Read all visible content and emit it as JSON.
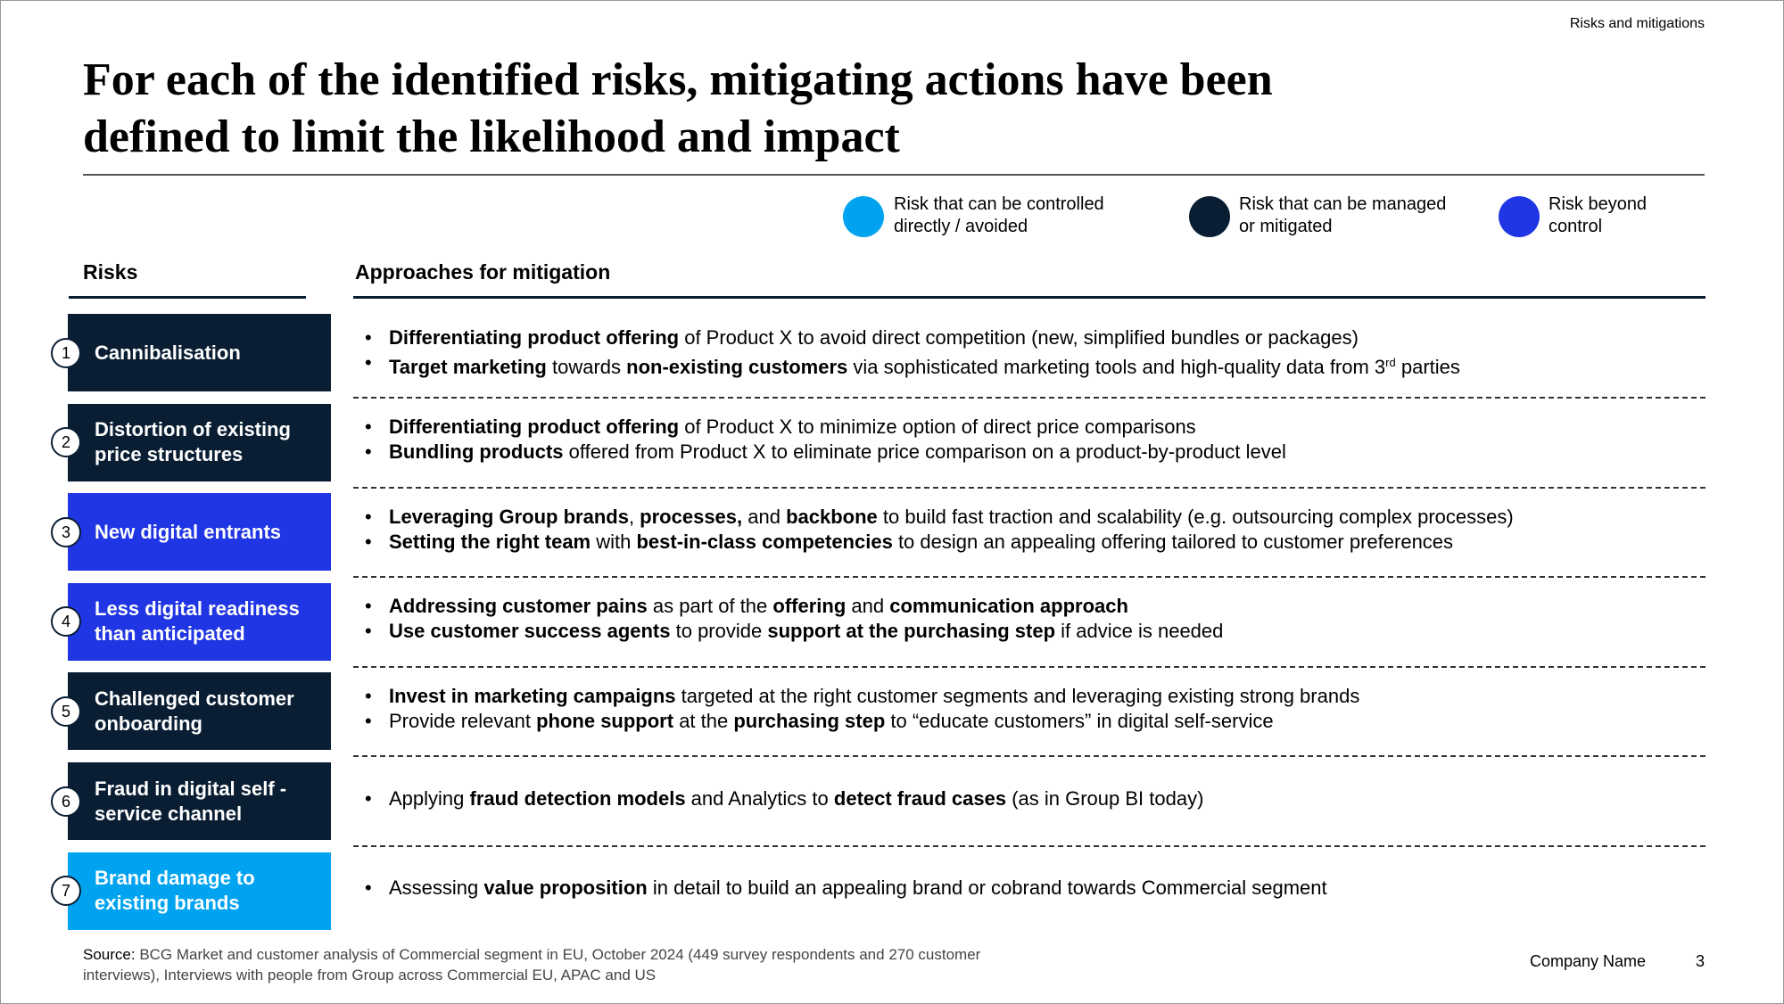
{
  "header": {
    "section": "Risks and mitigations",
    "title_lines": [
      "For each of the identified risks, mitigating actions have been",
      "defined to limit the likelihood and impact"
    ]
  },
  "legend": [
    {
      "color": "#00a3f0",
      "label_lines": [
        "Risk that can be controlled",
        "directly / avoided"
      ]
    },
    {
      "color": "#0a1e33",
      "label_lines": [
        "Risk that can be managed",
        "or mitigated"
      ]
    },
    {
      "color": "#2035e3",
      "label_lines": [
        "Risk beyond",
        "control"
      ]
    }
  ],
  "table": {
    "headers": [
      "Risks",
      "Approaches for mitigation"
    ],
    "rows": [
      {
        "number": "1",
        "color": "#0a1e33",
        "risk_lines": [
          "Cannibalisation"
        ],
        "bullets": [
          [
            {
              "text": "Differentiating product offering",
              "style": "bold"
            },
            {
              "text": " of Product X to avoid direct competition (new, simplified bundles or packages)"
            }
          ],
          [
            {
              "text": "Target marketing",
              "style": "bold"
            },
            {
              "text": " towards "
            },
            {
              "text": "non-existing customers",
              "style": "bold"
            },
            {
              "text": " via sophisticated marketing tools and high-quality data from 3"
            },
            {
              "text": "rd",
              "style": "sup"
            },
            {
              "text": " parties"
            }
          ]
        ]
      },
      {
        "number": "2",
        "color": "#0a1e33",
        "risk_lines": [
          "Distortion of existing",
          "price structures"
        ],
        "bullets": [
          [
            {
              "text": "Differentiating product offering",
              "style": "bold"
            },
            {
              "text": " of Product X to minimize option of direct price comparisons"
            }
          ],
          [
            {
              "text": "Bundling products",
              "style": "bold"
            },
            {
              "text": " offered from Product X to eliminate price comparison on a product-by-product level"
            }
          ]
        ]
      },
      {
        "number": "3",
        "color": "#2035e3",
        "risk_lines": [
          "New digital entrants"
        ],
        "bullets": [
          [
            {
              "text": "Leveraging Group brands",
              "style": "bold"
            },
            {
              "text": ", "
            },
            {
              "text": "processes,",
              "style": "bold"
            },
            {
              "text": " and "
            },
            {
              "text": "backbone",
              "style": "bold"
            },
            {
              "text": " to build fast traction and scalability (e.g. outsourcing complex processes)"
            }
          ],
          [
            {
              "text": "Setting the right team",
              "style": "bold"
            },
            {
              "text": " with "
            },
            {
              "text": "best-in-class competencies",
              "style": "bold"
            },
            {
              "text": " to design an appealing offering tailored to customer preferences"
            }
          ]
        ]
      },
      {
        "number": "4",
        "color": "#2035e3",
        "risk_lines": [
          "Less digital readiness",
          "than anticipated"
        ],
        "bullets": [
          [
            {
              "text": "Addressing customer pains",
              "style": "bold"
            },
            {
              "text": " as part of the "
            },
            {
              "text": "offering",
              "style": "bold"
            },
            {
              "text": " and "
            },
            {
              "text": "communication approach",
              "style": "bold"
            }
          ],
          [
            {
              "text": "Use customer success agents",
              "style": "bold"
            },
            {
              "text": " to provide "
            },
            {
              "text": "support at the purchasing step",
              "style": "bold"
            },
            {
              "text": " if advice is needed"
            }
          ]
        ]
      },
      {
        "number": "5",
        "color": "#0a1e33",
        "risk_lines": [
          "Challenged customer",
          "onboarding"
        ],
        "bullets": [
          [
            {
              "text": "Invest in marketing campaigns",
              "style": "bold"
            },
            {
              "text": " targeted at the right customer segments and leveraging existing strong brands"
            }
          ],
          [
            {
              "text": "Provide relevant "
            },
            {
              "text": "phone support",
              "style": "bold"
            },
            {
              "text": " at the "
            },
            {
              "text": "purchasing step",
              "style": "bold"
            },
            {
              "text": " to “educate customers” in digital self-service"
            }
          ]
        ]
      },
      {
        "number": "6",
        "color": "#0a1e33",
        "risk_lines": [
          "Fraud in digital self -",
          "service channel"
        ],
        "bullets": [
          [
            {
              "text": "Applying "
            },
            {
              "text": "fraud detection models",
              "style": "bold"
            },
            {
              "text": " and Analytics to "
            },
            {
              "text": "detect fraud cases",
              "style": "bold"
            },
            {
              "text": " (as in Group BI today)"
            }
          ]
        ]
      },
      {
        "number": "7",
        "color": "#00a3f0",
        "risk_lines": [
          "Brand damage to",
          "existing brands"
        ],
        "bullets": [
          [
            {
              "text": "Assessing "
            },
            {
              "text": "value proposition",
              "style": "bold"
            },
            {
              "text": " in detail to build an appealing brand or cobrand towards Commercial segment"
            }
          ]
        ]
      }
    ]
  },
  "footer": {
    "source_label": "Source:",
    "source_lines": [
      " BCG Market and customer analysis of Commercial segment in EU, October 2024 (449 survey respondents and 270 customer",
      "interviews), Interviews with people from Group across Commercial EU, APAC and US"
    ],
    "company": "Company Name",
    "page": "3"
  }
}
